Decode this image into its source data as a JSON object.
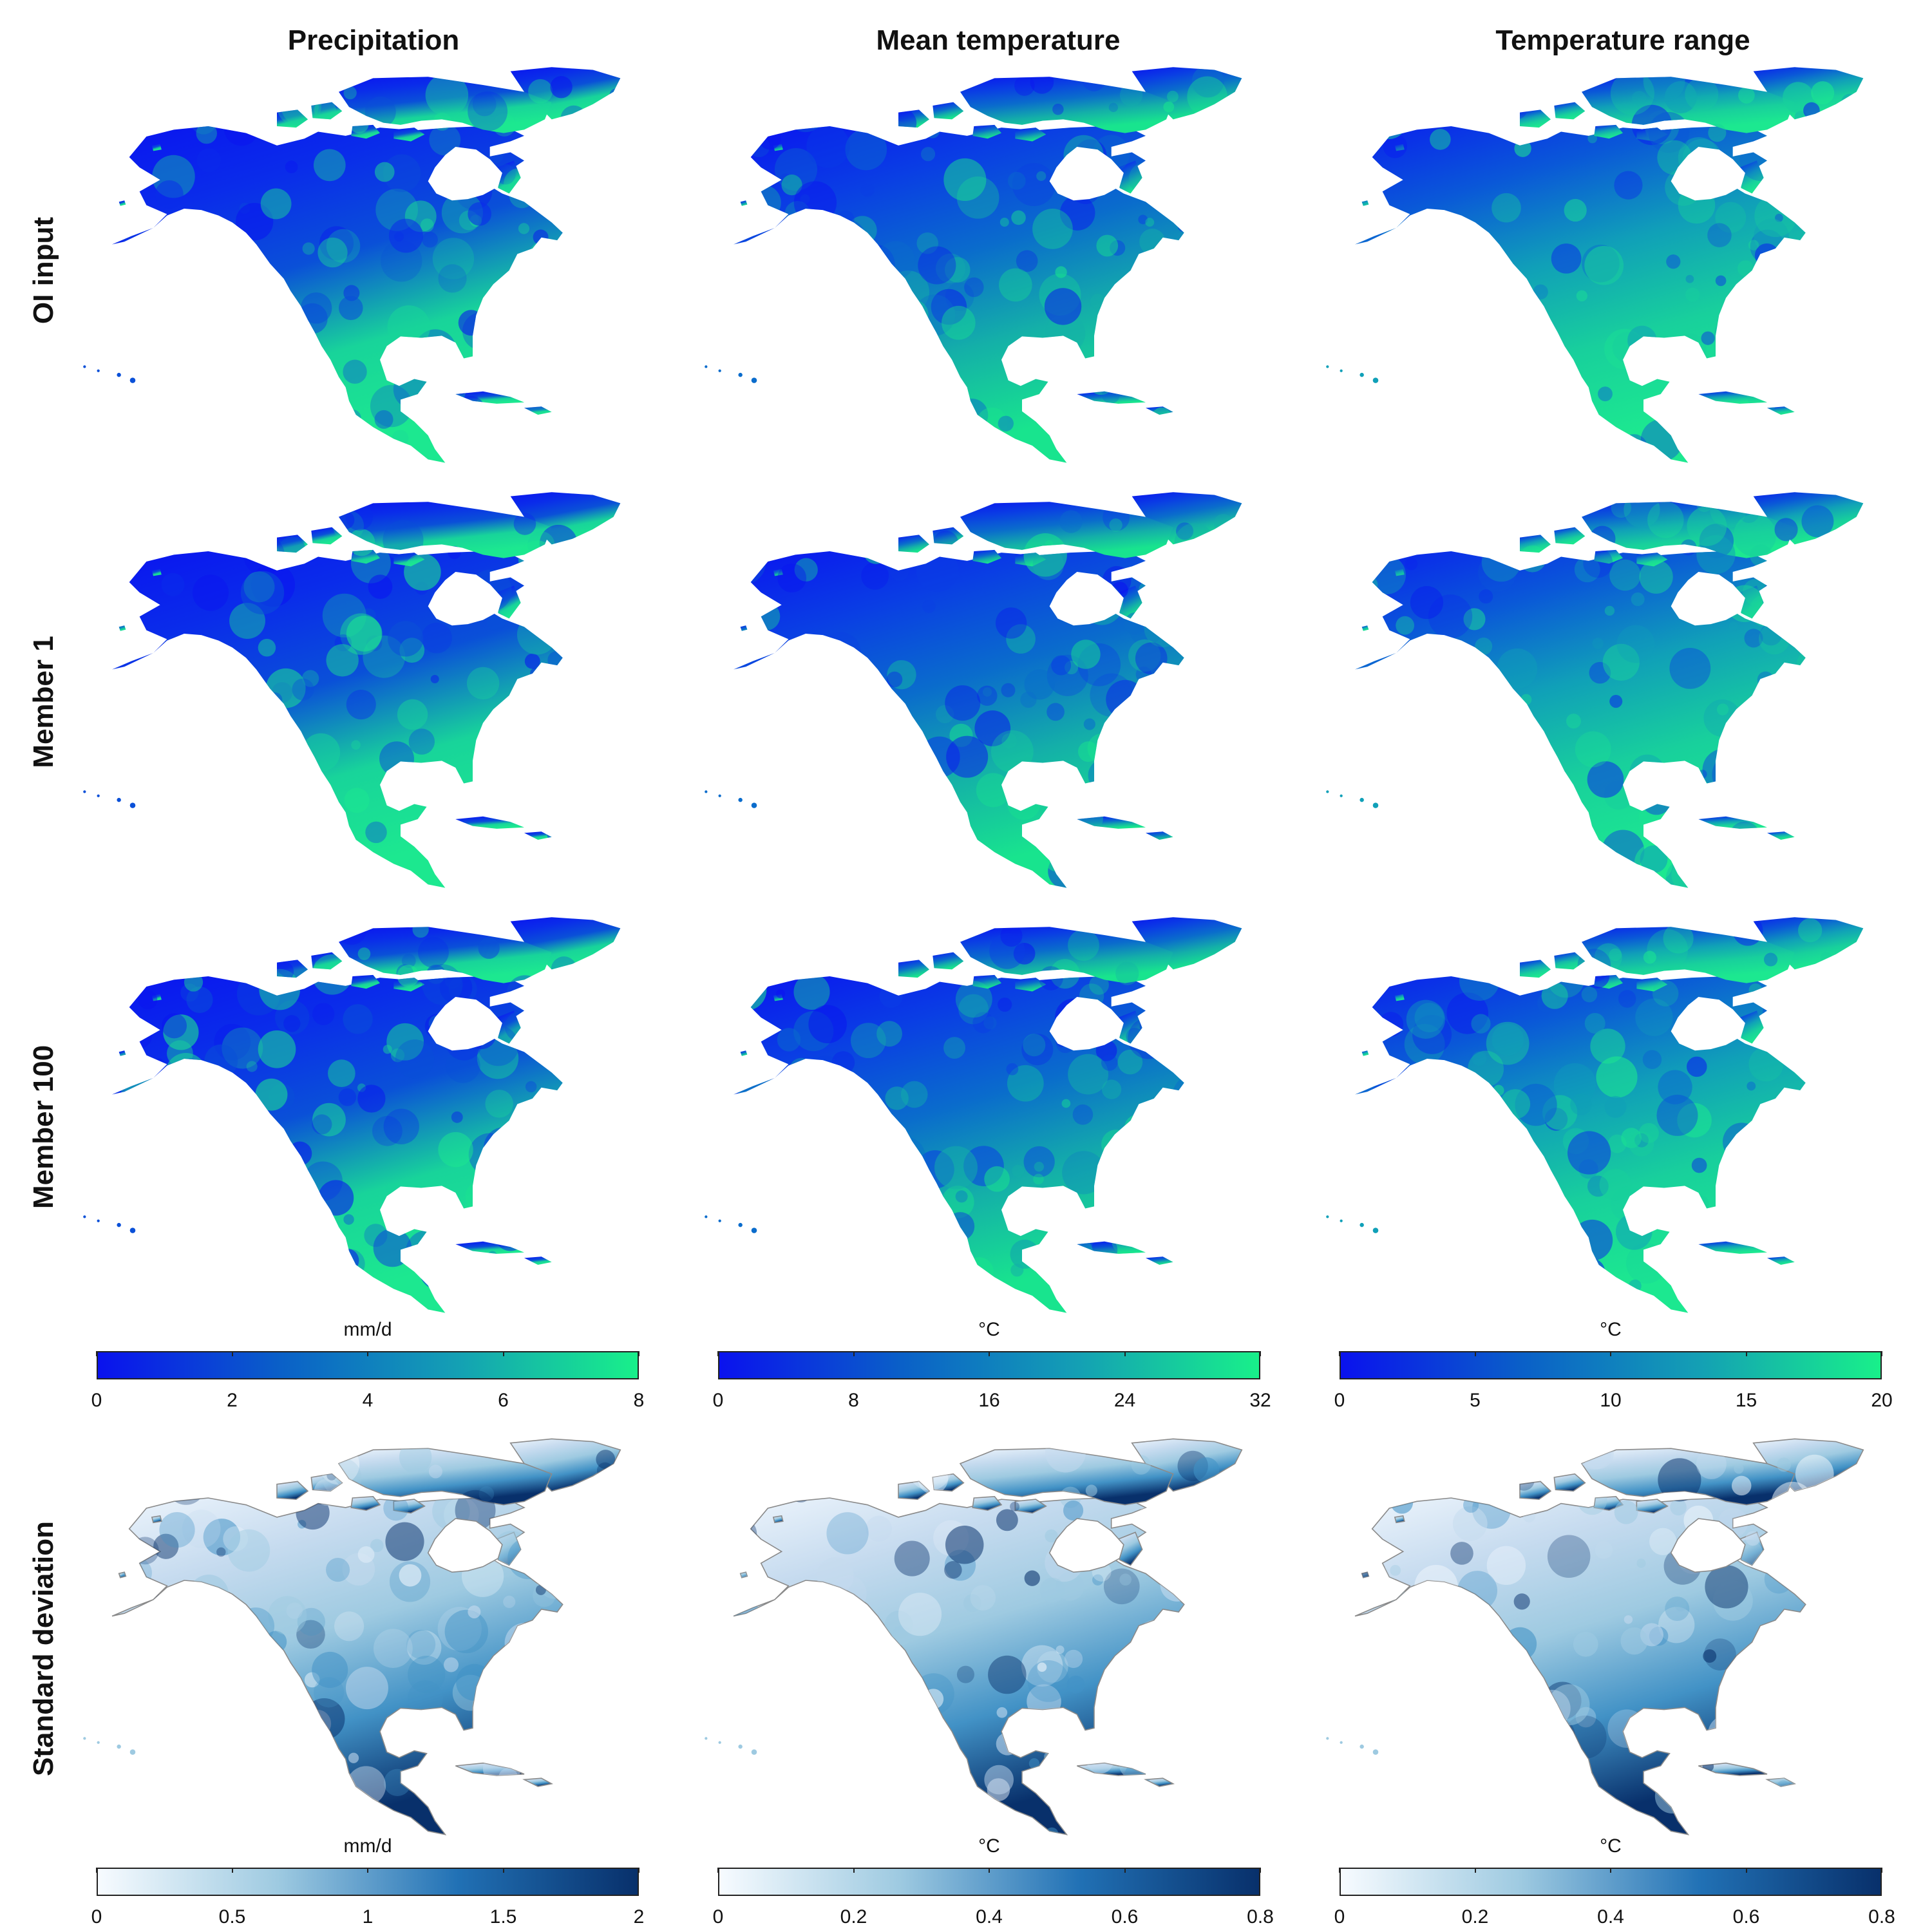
{
  "columns": [
    {
      "title": "Precipitation"
    },
    {
      "title": "Mean temperature"
    },
    {
      "title": "Temperature range"
    }
  ],
  "rows": [
    {
      "label": "OI input"
    },
    {
      "label": "Member 1"
    },
    {
      "label": "Member 100"
    },
    {
      "label": "Standard deviation"
    }
  ],
  "colorbars_value": [
    {
      "unit": "mm/d",
      "ticks": [
        "0",
        "2",
        "4",
        "6",
        "8"
      ],
      "range": [
        0,
        8
      ],
      "colors": [
        "#0a12ee",
        "#0a5fc8",
        "#14a0b4",
        "#18f08a"
      ]
    },
    {
      "unit": "°C",
      "ticks": [
        "0",
        "8",
        "16",
        "24",
        "32"
      ],
      "range": [
        0,
        32
      ],
      "colors": [
        "#0a12ee",
        "#0a5fc8",
        "#14a0b4",
        "#18f08a"
      ]
    },
    {
      "unit": "°C",
      "ticks": [
        "0",
        "5",
        "10",
        "15",
        "20"
      ],
      "range": [
        0,
        20
      ],
      "colors": [
        "#0a12ee",
        "#0a5fc8",
        "#14a0b4",
        "#18f08a"
      ]
    }
  ],
  "colorbars_sd": [
    {
      "unit": "mm/d",
      "ticks": [
        "0",
        "0.5",
        "1",
        "1.5",
        "2"
      ],
      "range": [
        0,
        2
      ],
      "colors": [
        "#f7fbff",
        "#9ecae1",
        "#2171b5",
        "#08306b"
      ]
    },
    {
      "unit": "°C",
      "ticks": [
        "0",
        "0.2",
        "0.4",
        "0.6",
        "0.8"
      ],
      "range": [
        0,
        0.8
      ],
      "colors": [
        "#f7fbff",
        "#9ecae1",
        "#2171b5",
        "#08306b"
      ]
    },
    {
      "unit": "°C",
      "ticks": [
        "0",
        "0.2",
        "0.4",
        "0.6",
        "0.8"
      ],
      "range": [
        0,
        0.8
      ],
      "colors": [
        "#f7fbff",
        "#9ecae1",
        "#2171b5",
        "#08306b"
      ]
    }
  ],
  "map_palettes": {
    "precip": [
      "#0a14f0",
      "#0a2cea",
      "#0a50d8",
      "#18d49a",
      "#1ce890"
    ],
    "tmean": [
      "#0a14f0",
      "#0a3ee4",
      "#0a6ccc",
      "#14b0a8",
      "#18e48e"
    ],
    "trange": [
      "#0a20ee",
      "#0a58d8",
      "#10a0b8",
      "#18d09c",
      "#1ce890"
    ],
    "sd": [
      "#eef5fc",
      "#c6dbef",
      "#9ecae1",
      "#4292c6",
      "#08306b"
    ]
  }
}
